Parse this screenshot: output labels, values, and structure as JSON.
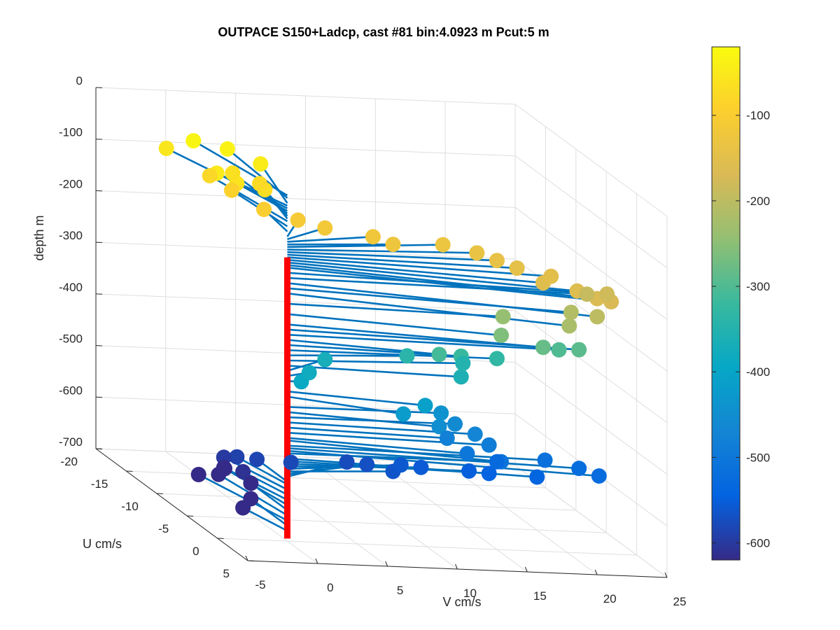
{
  "chart_data": {
    "type": "scatter",
    "title": "OUTPACE S150+Ladcp, cast #81 bin:4.0923 m  Pcut:5 m",
    "xlabel": "V cm/s",
    "ylabel": "U cm/s",
    "zlabel": "depth m",
    "xlim": [
      -5,
      25
    ],
    "ylim": [
      -20,
      5
    ],
    "zlim": [
      -700,
      0
    ],
    "x_ticks": [
      "-5",
      "0",
      "5",
      "10",
      "15",
      "20",
      "25"
    ],
    "y_ticks": [
      "-20",
      "-15",
      "-10",
      "-5",
      "0",
      "5"
    ],
    "z_ticks": [
      "0",
      "-100",
      "-200",
      "-300",
      "-400",
      "-500",
      "-600",
      "-700"
    ],
    "grid": true,
    "colorbar": {
      "limits": [
        -620,
        -20
      ],
      "ticks": [
        "-100",
        "-200",
        "-300",
        "-400",
        "-500",
        "-600"
      ],
      "colormap": "parula"
    },
    "profile_line_color": "#ff0000",
    "stick_color": "#0072bd",
    "vectors": [
      {
        "depth": -30,
        "v": -1.5,
        "u": -12
      },
      {
        "depth": -35,
        "v": 0.5,
        "u": -11
      },
      {
        "depth": -45,
        "v": 2,
        "u": -9
      },
      {
        "depth": -50,
        "v": -2,
        "u": -7
      },
      {
        "depth": -55,
        "v": -3,
        "u": -13
      },
      {
        "depth": -60,
        "v": -1,
        "u": -6
      },
      {
        "depth": -65,
        "v": 0,
        "u": -9
      },
      {
        "depth": -70,
        "v": 1,
        "u": -6
      },
      {
        "depth": -75,
        "v": 1.5,
        "u": -8
      },
      {
        "depth": -80,
        "v": -1.2,
        "u": -10
      },
      {
        "depth": -90,
        "v": -0.5,
        "u": -8
      },
      {
        "depth": -100,
        "v": 0.5,
        "u": -5
      },
      {
        "depth": -110,
        "v": 2.5,
        "u": -4
      },
      {
        "depth": -115,
        "v": 4,
        "u": -3
      },
      {
        "depth": -120,
        "v": 7,
        "u": -2
      },
      {
        "depth": -125,
        "v": 8,
        "u": -1
      },
      {
        "depth": -130,
        "v": 12,
        "u": -2
      },
      {
        "depth": -135,
        "v": 14,
        "u": -1
      },
      {
        "depth": -140,
        "v": 15,
        "u": 0
      },
      {
        "depth": -145,
        "v": 16,
        "u": 1
      },
      {
        "depth": -150,
        "v": 18,
        "u": 2
      },
      {
        "depth": -155,
        "v": 17,
        "u": 3
      },
      {
        "depth": -160,
        "v": 19,
        "u": 4
      },
      {
        "depth": -165,
        "v": 20,
        "u": 5
      },
      {
        "depth": -170,
        "v": 21,
        "u": 5
      },
      {
        "depth": -180,
        "v": 22,
        "u": 2
      },
      {
        "depth": -190,
        "v": 21,
        "u": 1
      },
      {
        "depth": -200,
        "v": 20,
        "u": 5
      },
      {
        "depth": -210,
        "v": 19,
        "u": 3
      },
      {
        "depth": -220,
        "v": 18,
        "u": 5
      },
      {
        "depth": -240,
        "v": 15,
        "u": 1
      },
      {
        "depth": -260,
        "v": 14,
        "u": 3
      },
      {
        "depth": -280,
        "v": 17,
        "u": 3
      },
      {
        "depth": -290,
        "v": 20,
        "u": 2
      },
      {
        "depth": -300,
        "v": 19,
        "u": 1
      },
      {
        "depth": -310,
        "v": 10,
        "u": 2
      },
      {
        "depth": -320,
        "v": 12,
        "u": 1
      },
      {
        "depth": -330,
        "v": 15,
        "u": 0
      },
      {
        "depth": -340,
        "v": 9,
        "u": -1
      },
      {
        "depth": -350,
        "v": 13,
        "u": -1
      },
      {
        "depth": -360,
        "v": 12,
        "u": 1
      },
      {
        "depth": -370,
        "v": 4,
        "u": -3
      },
      {
        "depth": -380,
        "v": 2,
        "u": -1
      },
      {
        "depth": -390,
        "v": 1,
        "u": 0
      },
      {
        "depth": -410,
        "v": 9,
        "u": 2
      },
      {
        "depth": -420,
        "v": 7,
        "u": 3
      },
      {
        "depth": -440,
        "v": 11,
        "u": 0
      },
      {
        "depth": -450,
        "v": 10,
        "u": 2
      },
      {
        "depth": -460,
        "v": 12,
        "u": 0
      },
      {
        "depth": -470,
        "v": 13,
        "u": 1
      },
      {
        "depth": -480,
        "v": 11,
        "u": 1
      },
      {
        "depth": -490,
        "v": 14,
        "u": 1
      },
      {
        "depth": -500,
        "v": 12,
        "u": 2
      },
      {
        "depth": -505,
        "v": 14,
        "u": 3
      },
      {
        "depth": -515,
        "v": 18,
        "u": 1
      },
      {
        "depth": -520,
        "v": 20,
        "u": 2
      },
      {
        "depth": -525,
        "v": 21,
        "u": 3
      },
      {
        "depth": -530,
        "v": 15,
        "u": 0
      },
      {
        "depth": -540,
        "v": 17,
        "u": 2
      },
      {
        "depth": -545,
        "v": 14,
        "u": 1
      },
      {
        "depth": -550,
        "v": 13,
        "u": 0
      },
      {
        "depth": -555,
        "v": 10,
        "u": -1
      },
      {
        "depth": -560,
        "v": 9,
        "u": -2
      },
      {
        "depth": -565,
        "v": 8,
        "u": -1
      },
      {
        "depth": -570,
        "v": 7,
        "u": -3
      },
      {
        "depth": -575,
        "v": 6,
        "u": -4
      },
      {
        "depth": -580,
        "v": 2,
        "u": -4
      },
      {
        "depth": -585,
        "v": 0,
        "u": -5
      },
      {
        "depth": -590,
        "v": -1,
        "u": -6
      },
      {
        "depth": -600,
        "v": -1.5,
        "u": -7
      },
      {
        "depth": -610,
        "v": -1,
        "u": -5
      },
      {
        "depth": -620,
        "v": -1.5,
        "u": -7
      },
      {
        "depth": -630,
        "v": -1,
        "u": -8
      },
      {
        "depth": -640,
        "v": 0,
        "u": -6
      },
      {
        "depth": -650,
        "v": -1,
        "u": -9
      },
      {
        "depth": -660,
        "v": -2,
        "u": -10
      },
      {
        "depth": -670,
        "v": 0,
        "u": -6
      },
      {
        "depth": -680,
        "v": -1,
        "u": -5
      }
    ]
  }
}
